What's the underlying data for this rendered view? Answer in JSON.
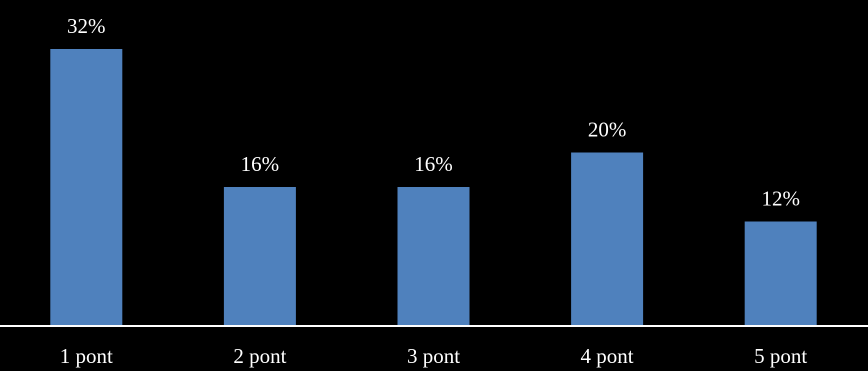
{
  "chart_data": {
    "type": "bar",
    "categories": [
      "1 pont",
      "2 pont",
      "3 pont",
      "4 pont",
      "5 pont"
    ],
    "values": [
      32,
      16,
      16,
      20,
      12
    ],
    "value_labels": [
      "32%",
      "16%",
      "16%",
      "20%",
      "12%"
    ],
    "unit": "%",
    "ylim": [
      0,
      32
    ],
    "grid": false,
    "legend": "none",
    "colors": {
      "background": "#000000",
      "bar": "#4f81bd",
      "axis": "#ffffff",
      "text": "#ffffff"
    }
  }
}
